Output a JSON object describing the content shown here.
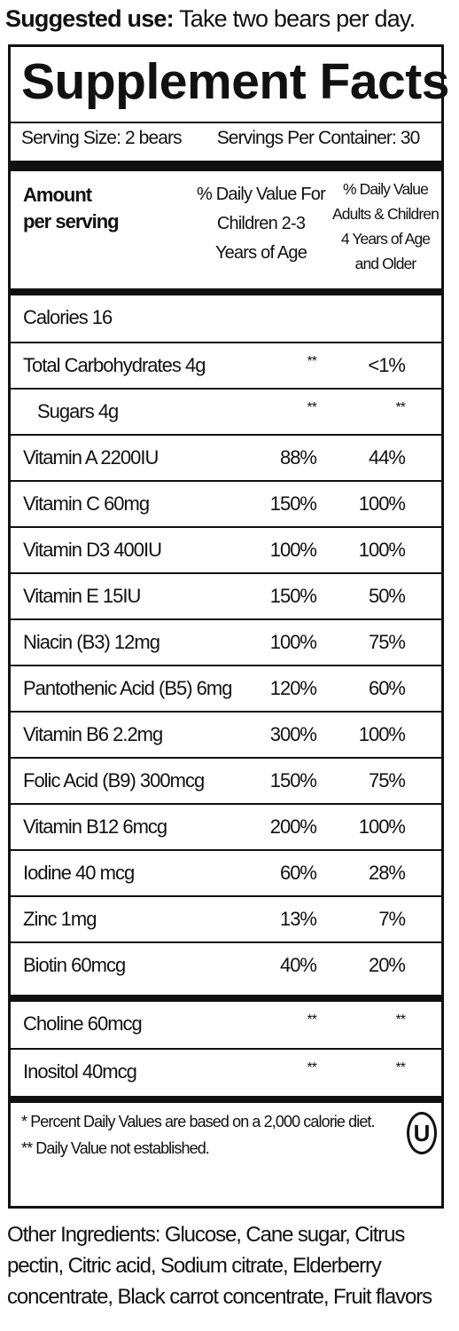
{
  "suggested_use": {
    "label": "Suggested use:",
    "text": "Take two bears per day."
  },
  "panel": {
    "title": "Supplement Facts",
    "serving_size": "Serving Size: 2 bears",
    "servings_per_container": "Servings Per Container: 30",
    "header": {
      "amount": [
        "Amount",
        "per serving"
      ],
      "col1": [
        "% Daily Value For",
        "Children 2-3",
        "Years of Age"
      ],
      "col2": [
        "% Daily Value",
        "Adults & Children",
        "4 Years of Age",
        "and Older"
      ]
    },
    "rows": [
      {
        "name": "Calories  16",
        "c1": "",
        "c2": ""
      },
      {
        "name": "Total Carbohydrates  4g",
        "c1": "**",
        "c2": "<1%"
      },
      {
        "name": "Sugars  4g",
        "c1": "**",
        "c2": "**",
        "indent": true
      },
      {
        "name": "Vitamin A  2200IU",
        "c1": "88%",
        "c2": "44%"
      },
      {
        "name": "Vitamin C  60mg",
        "c1": "150%",
        "c2": "100%"
      },
      {
        "name": "Vitamin D3  400IU",
        "c1": "100%",
        "c2": "100%"
      },
      {
        "name": "Vitamin E  15IU",
        "c1": "150%",
        "c2": "50%"
      },
      {
        "name": "Niacin (B3)  12mg",
        "c1": "100%",
        "c2": "75%"
      },
      {
        "name": "Pantothenic Acid (B5) 6mg",
        "c1": "120%",
        "c2": "60%"
      },
      {
        "name": "Vitamin B6  2.2mg",
        "c1": "300%",
        "c2": "100%"
      },
      {
        "name": "Folic Acid (B9) 300mcg",
        "c1": "150%",
        "c2": "75%"
      },
      {
        "name": "Vitamin B12  6mcg",
        "c1": "200%",
        "c2": "100%"
      },
      {
        "name": "Iodine 40 mcg",
        "c1": "60%",
        "c2": "28%"
      },
      {
        "name": "Zinc  1mg",
        "c1": "13%",
        "c2": "7%"
      },
      {
        "name": "Biotin  60mcg",
        "c1": "40%",
        "c2": "20%"
      },
      {
        "name": "Choline  60mcg",
        "c1": "**",
        "c2": "**"
      },
      {
        "name": "Inositol  40mcg",
        "c1": "**",
        "c2": "**"
      }
    ],
    "footnote_1": "* Percent Daily Values are based on a 2,000 calorie diet.",
    "footnote_2": "** Daily Value not established.",
    "kosher_symbol": "U"
  },
  "other_ingredients": "Other Ingredients: Glucose, Cane sugar, Citrus pectin, Citric acid, Sodium citrate, Elderberry concentrate, Black carrot concentrate, Fruit flavors"
}
